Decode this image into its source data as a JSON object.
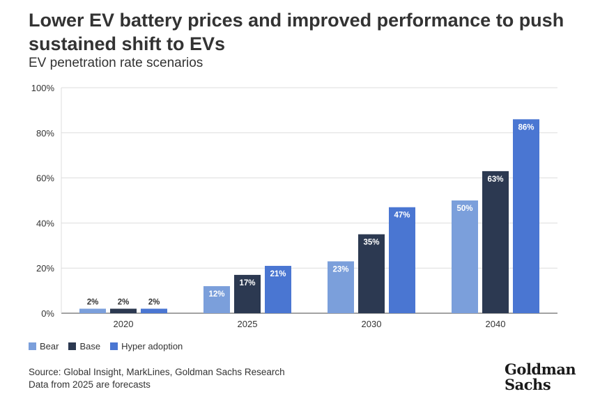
{
  "header": {
    "title": "Lower EV battery prices and improved performance to push sustained shift to EVs",
    "subtitle": "EV penetration rate scenarios"
  },
  "colors": {
    "bear": "#7b9fdb",
    "base": "#2c3951",
    "hyper": "#4a76d2",
    "grid": "#dddddd",
    "axis": "#444444"
  },
  "chart_data": {
    "type": "bar",
    "categories": [
      "2020",
      "2025",
      "2030",
      "2040"
    ],
    "series": [
      {
        "name": "Bear",
        "values": [
          2,
          12,
          23,
          50
        ],
        "labels": [
          "2%",
          "12%",
          "23%",
          "50%"
        ]
      },
      {
        "name": "Base",
        "values": [
          2,
          17,
          35,
          63
        ],
        "labels": [
          "2%",
          "17%",
          "35%",
          "63%"
        ]
      },
      {
        "name": "Hyper adoption",
        "values": [
          2,
          21,
          47,
          86
        ],
        "labels": [
          "2%",
          "21%",
          "47%",
          "86%"
        ]
      }
    ],
    "ylim": [
      0,
      100
    ],
    "yticks": [
      0,
      20,
      40,
      60,
      80,
      100
    ],
    "ytick_labels": [
      "0%",
      "20%",
      "40%",
      "60%",
      "80%",
      "100%"
    ],
    "grid": true,
    "legend": "bottom-left"
  },
  "footer": {
    "source": "Source: Global Insight, MarkLines, Goldman Sachs Research",
    "note": "Data from 2025 are forecasts"
  },
  "logo": {
    "line1": "Goldman",
    "line2": "Sachs"
  }
}
